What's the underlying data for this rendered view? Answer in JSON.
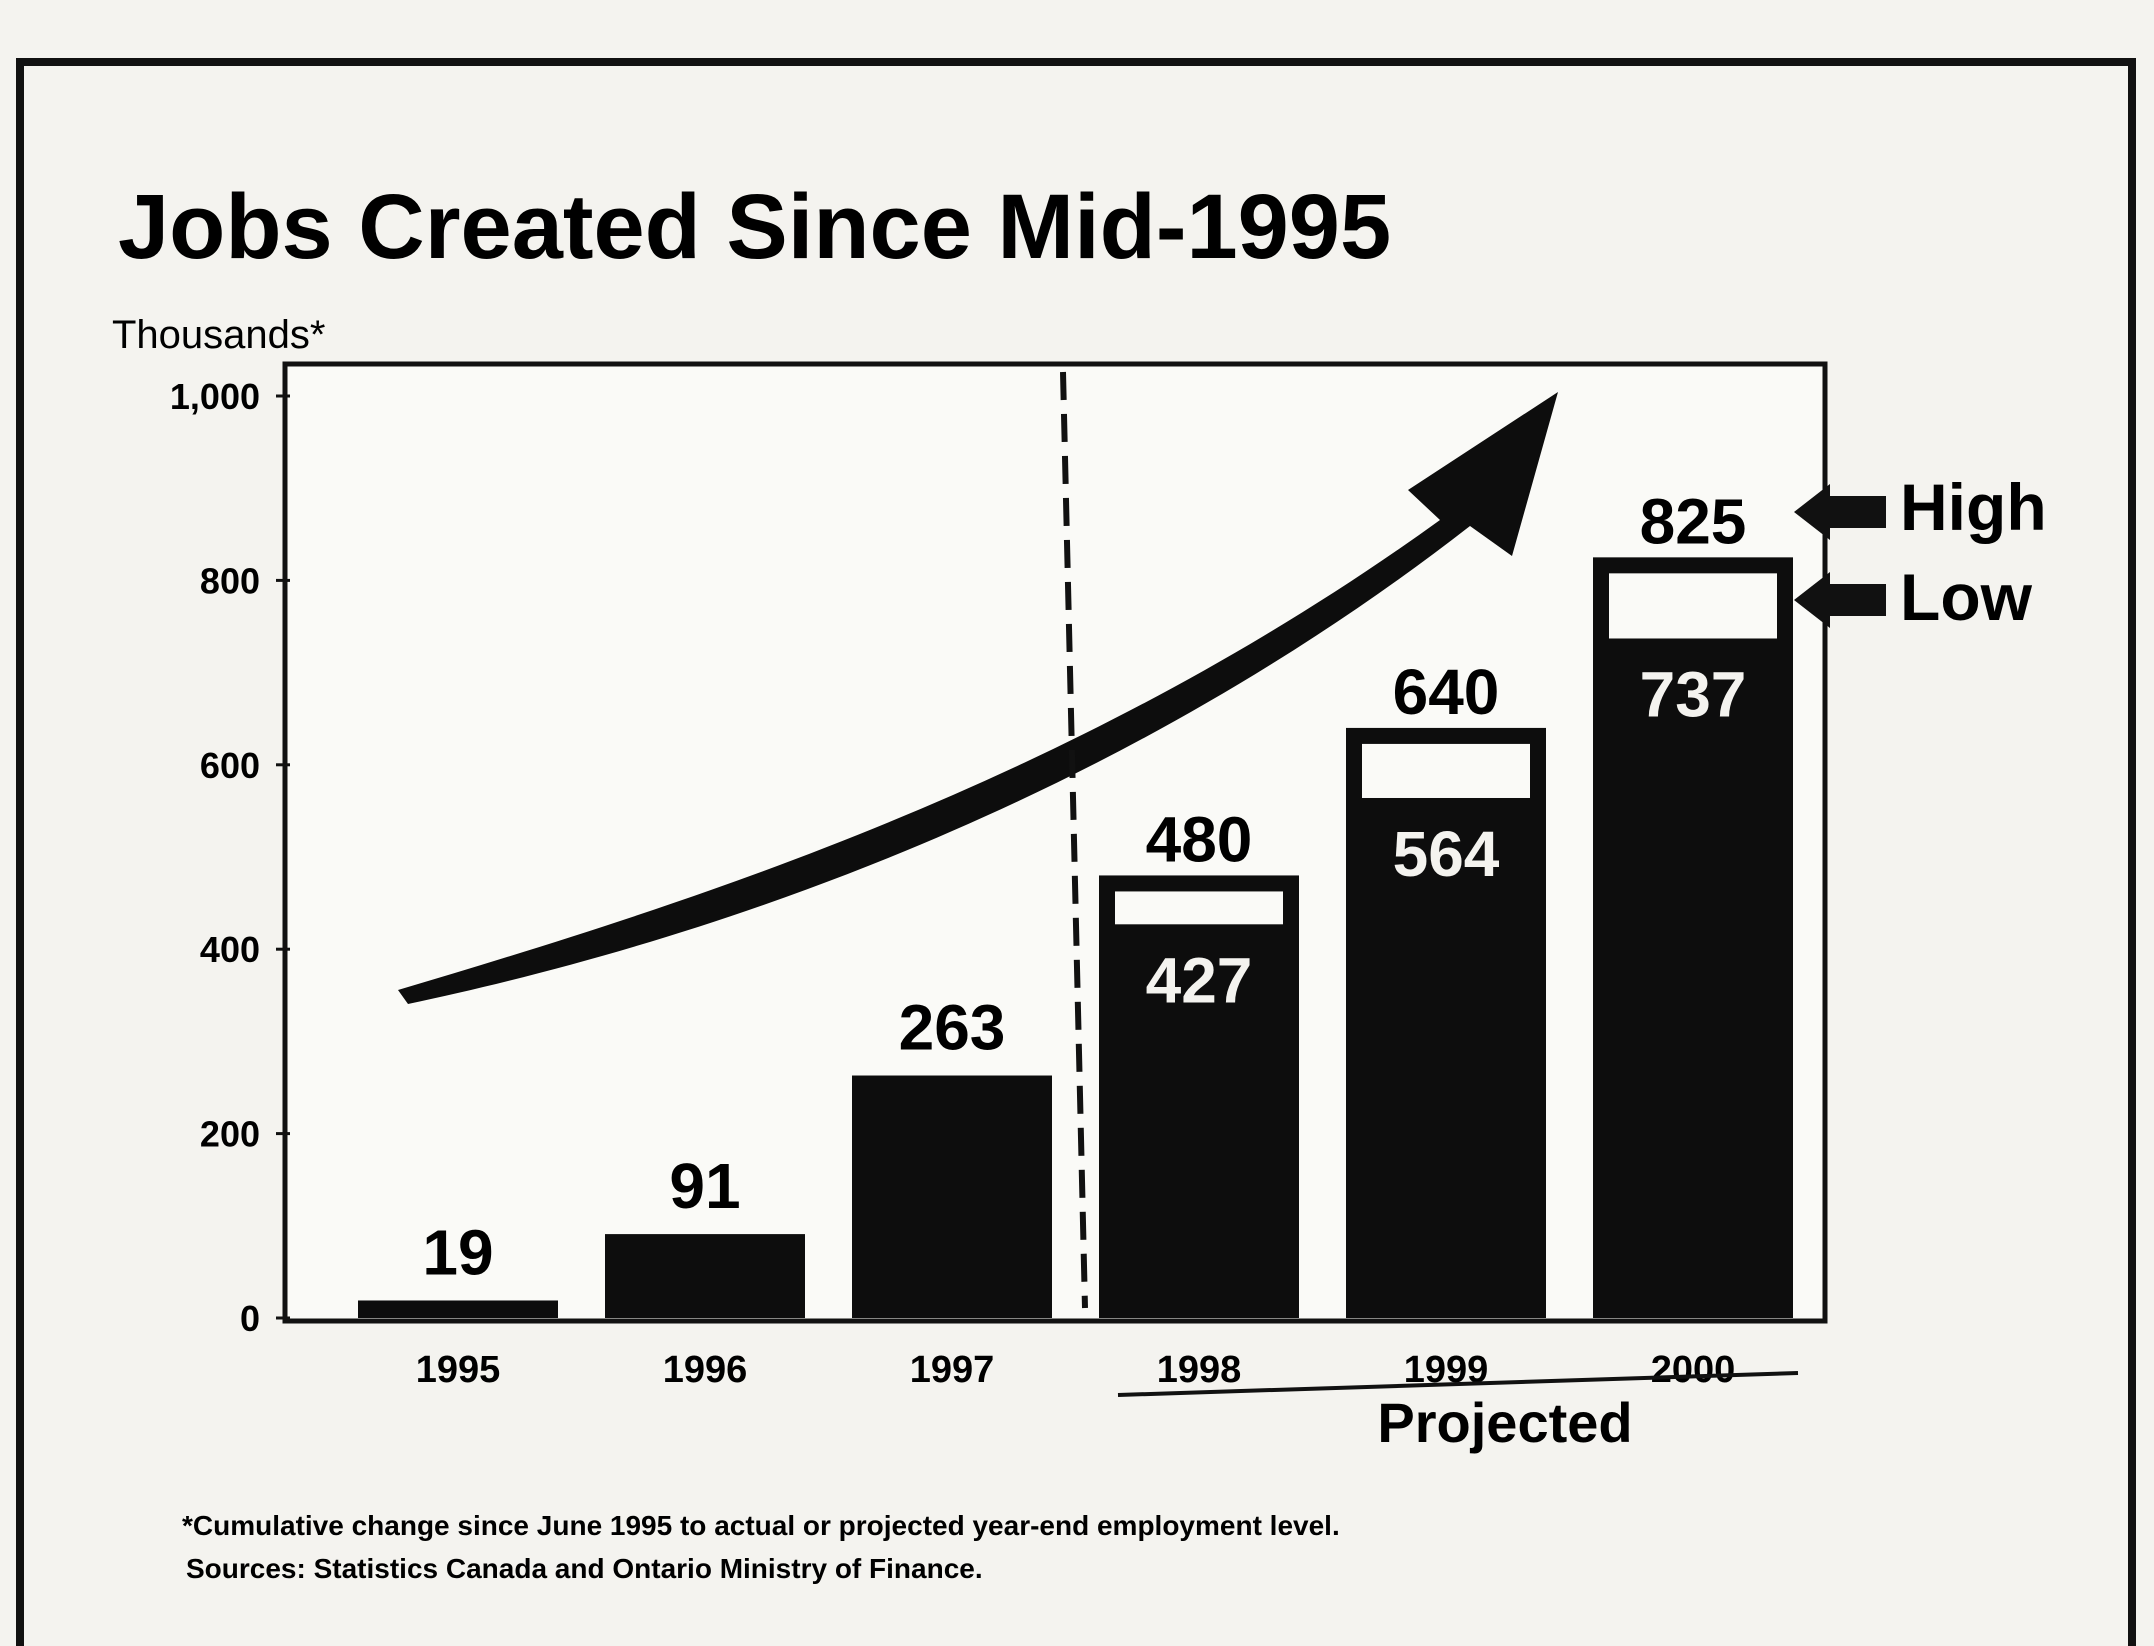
{
  "chart_data": {
    "type": "bar",
    "title": "Jobs Created Since Mid-1995",
    "unit_label": "Thousands*",
    "ylim": [
      0,
      1000
    ],
    "yticks": [
      0,
      200,
      400,
      600,
      800,
      1000
    ],
    "ytick_labels": [
      "0",
      "200",
      "400",
      "600",
      "800",
      "1,000"
    ],
    "categories": [
      "1995",
      "1996",
      "1997",
      "1998",
      "1999",
      "2000"
    ],
    "series": [
      {
        "name": "Low",
        "values": [
          19,
          91,
          263,
          427,
          564,
          737
        ]
      },
      {
        "name": "High",
        "values": [
          null,
          null,
          null,
          480,
          640,
          825
        ]
      }
    ],
    "data_labels": {
      "actual": [
        "19",
        "91",
        "263"
      ],
      "high": [
        "480",
        "640",
        "825"
      ],
      "low": [
        "427",
        "564",
        "737"
      ]
    },
    "projection_start_category": "1998",
    "projected_label": "Projected",
    "legend": [
      "High",
      "Low"
    ],
    "legend_placement": "right",
    "trend_arrow": true,
    "grid": false,
    "footnote": "*Cumulative change since June 1995 to actual or projected year-end employment level.",
    "source": "Sources: Statistics Canada and Ontario Ministry of Finance."
  }
}
